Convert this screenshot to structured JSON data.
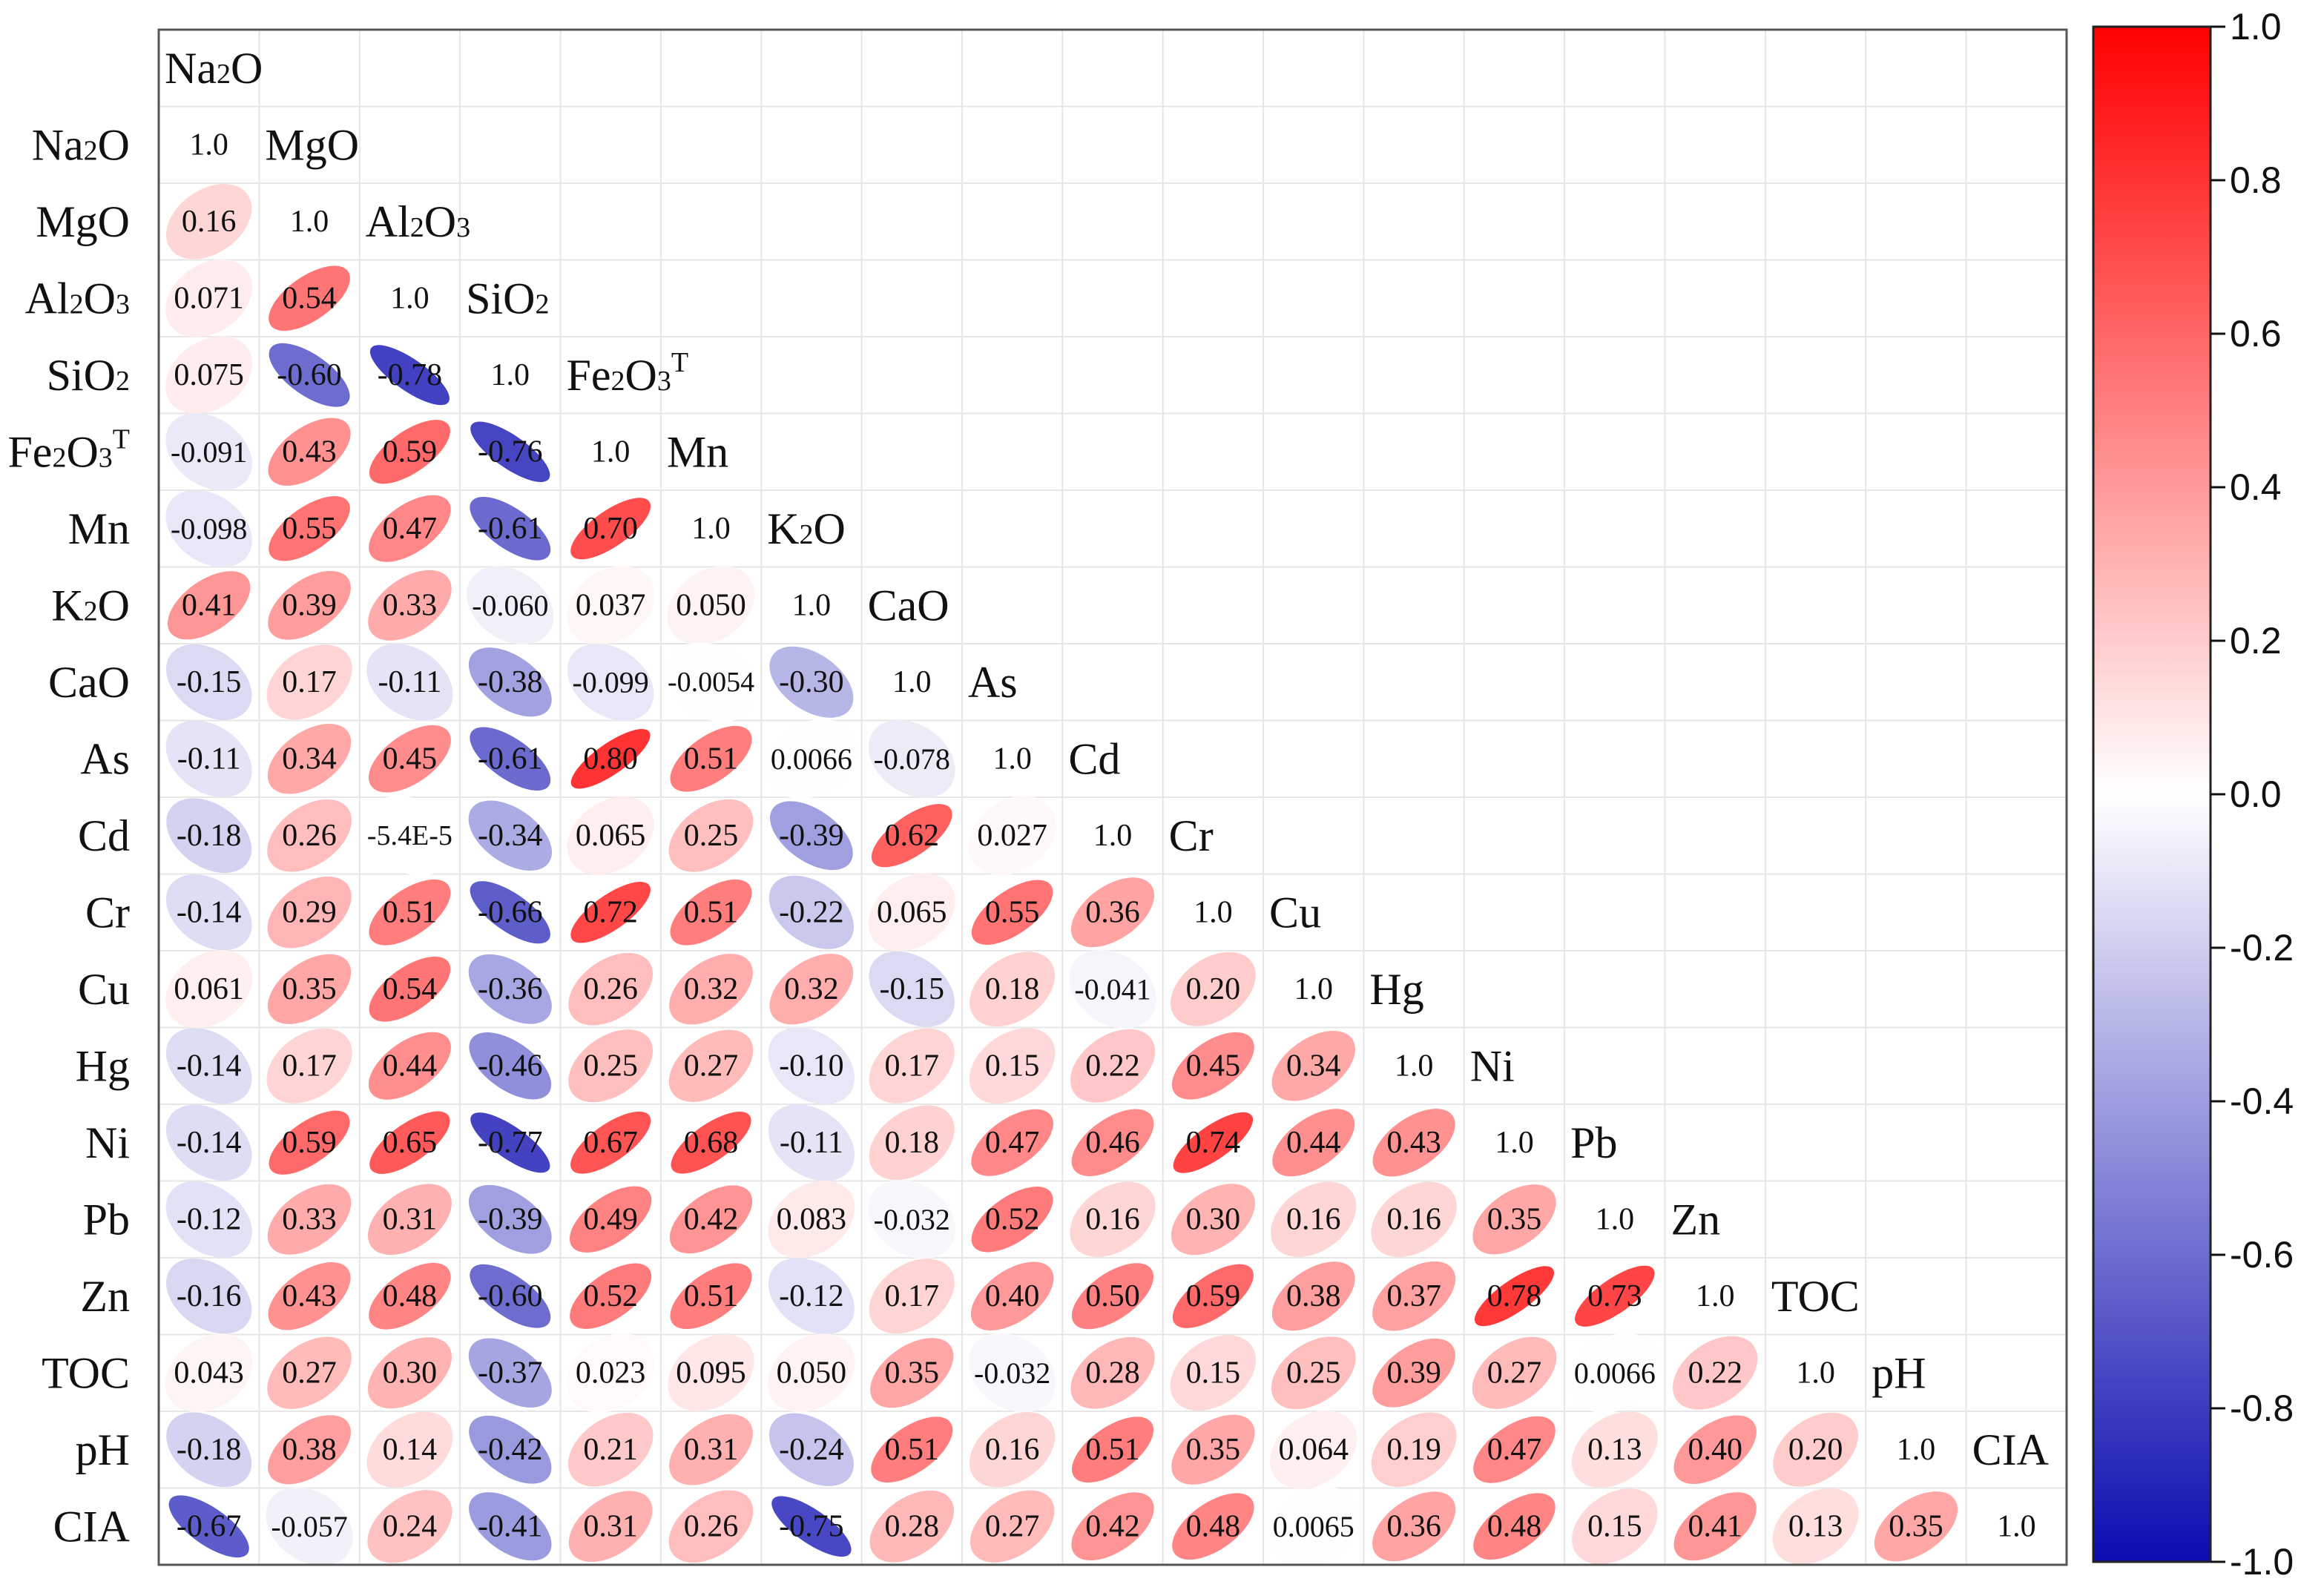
{
  "chart_data": {
    "type": "heatmap",
    "variables": [
      "Na2O",
      "MgO",
      "Al2O3",
      "SiO2",
      "Fe2O3T",
      "Mn",
      "K2O",
      "CaO",
      "As",
      "Cd",
      "Cr",
      "Cu",
      "Hg",
      "Ni",
      "Pb",
      "Zn",
      "TOC",
      "pH",
      "CIA"
    ],
    "label_parts": [
      [
        [
          "Na",
          ""
        ],
        [
          "2",
          "sub"
        ],
        [
          "O",
          ""
        ]
      ],
      [
        [
          "MgO",
          ""
        ]
      ],
      [
        [
          "Al",
          ""
        ],
        [
          "2",
          "sub"
        ],
        [
          "O",
          ""
        ],
        [
          "3",
          "sub"
        ]
      ],
      [
        [
          "SiO",
          ""
        ],
        [
          "2",
          "sub"
        ]
      ],
      [
        [
          "Fe",
          ""
        ],
        [
          "2",
          "sub"
        ],
        [
          "O",
          ""
        ],
        [
          "3",
          "sub"
        ],
        [
          "T",
          "sup"
        ]
      ],
      [
        [
          "Mn",
          ""
        ]
      ],
      [
        [
          "K",
          ""
        ],
        [
          "2",
          "sub"
        ],
        [
          "O",
          ""
        ]
      ],
      [
        [
          "CaO",
          ""
        ]
      ],
      [
        [
          "As",
          ""
        ]
      ],
      [
        [
          "Cd",
          ""
        ]
      ],
      [
        [
          "Cr",
          ""
        ]
      ],
      [
        [
          "Cu",
          ""
        ]
      ],
      [
        [
          "Hg",
          ""
        ]
      ],
      [
        [
          "Ni",
          ""
        ]
      ],
      [
        [
          "Pb",
          ""
        ]
      ],
      [
        [
          "Zn",
          ""
        ]
      ],
      [
        [
          "TOC",
          ""
        ]
      ],
      [
        [
          "pH",
          ""
        ]
      ],
      [
        [
          "CIA",
          ""
        ]
      ]
    ],
    "lower_triangle": [
      [
        "1.0"
      ],
      [
        "0.16",
        "1.0"
      ],
      [
        "0.071",
        "0.54",
        "1.0"
      ],
      [
        "0.075",
        "-0.60",
        "-0.78",
        "1.0"
      ],
      [
        "-0.091",
        "0.43",
        "0.59",
        "-0.76",
        "1.0"
      ],
      [
        "-0.098",
        "0.55",
        "0.47",
        "-0.61",
        "0.70",
        "1.0"
      ],
      [
        "0.41",
        "0.39",
        "0.33",
        "-0.060",
        "0.037",
        "0.050",
        "1.0"
      ],
      [
        "-0.15",
        "0.17",
        "-0.11",
        "-0.38",
        "-0.099",
        "-0.0054",
        "-0.30",
        "1.0"
      ],
      [
        "-0.11",
        "0.34",
        "0.45",
        "-0.61",
        "0.80",
        "0.51",
        "0.0066",
        "-0.078",
        "1.0"
      ],
      [
        "-0.18",
        "0.26",
        "-5.4E-5",
        "-0.34",
        "0.065",
        "0.25",
        "-0.39",
        "0.62",
        "0.027",
        "1.0"
      ],
      [
        "-0.14",
        "0.29",
        "0.51",
        "-0.66",
        "0.72",
        "0.51",
        "-0.22",
        "0.065",
        "0.55",
        "0.36",
        "1.0"
      ],
      [
        "0.061",
        "0.35",
        "0.54",
        "-0.36",
        "0.26",
        "0.32",
        "0.32",
        "-0.15",
        "0.18",
        "-0.041",
        "0.20",
        "1.0"
      ],
      [
        "-0.14",
        "0.17",
        "0.44",
        "-0.46",
        "0.25",
        "0.27",
        "-0.10",
        "0.17",
        "0.15",
        "0.22",
        "0.45",
        "0.34",
        "1.0"
      ],
      [
        "-0.14",
        "0.59",
        "0.65",
        "-0.77",
        "0.67",
        "0.68",
        "-0.11",
        "0.18",
        "0.47",
        "0.46",
        "0.74",
        "0.44",
        "0.43",
        "1.0"
      ],
      [
        "-0.12",
        "0.33",
        "0.31",
        "-0.39",
        "0.49",
        "0.42",
        "0.083",
        "-0.032",
        "0.52",
        "0.16",
        "0.30",
        "0.16",
        "0.16",
        "0.35",
        "1.0"
      ],
      [
        "-0.16",
        "0.43",
        "0.48",
        "-0.60",
        "0.52",
        "0.51",
        "-0.12",
        "0.17",
        "0.40",
        "0.50",
        "0.59",
        "0.38",
        "0.37",
        "0.78",
        "0.73",
        "1.0"
      ],
      [
        "0.043",
        "0.27",
        "0.30",
        "-0.37",
        "0.023",
        "0.095",
        "0.050",
        "0.35",
        "-0.032",
        "0.28",
        "0.15",
        "0.25",
        "0.39",
        "0.27",
        "0.0066",
        "0.22",
        "1.0"
      ],
      [
        "-0.18",
        "0.38",
        "0.14",
        "-0.42",
        "0.21",
        "0.31",
        "-0.24",
        "0.51",
        "0.16",
        "0.51",
        "0.35",
        "0.064",
        "0.19",
        "0.47",
        "0.13",
        "0.40",
        "0.20",
        "1.0"
      ],
      [
        "-0.67",
        "-0.057",
        "0.24",
        "-0.41",
        "0.31",
        "0.26",
        "-0.75",
        "0.28",
        "0.27",
        "0.42",
        "0.48",
        "0.0065",
        "0.36",
        "0.48",
        "0.15",
        "0.41",
        "0.13",
        "0.35",
        "1.0"
      ]
    ],
    "colorbar": {
      "range": [
        -1.0,
        1.0
      ],
      "ticks": [
        "1.0",
        "0.8",
        "0.6",
        "0.4",
        "0.2",
        "0.0",
        "-0.2",
        "-0.4",
        "-0.6",
        "-0.8",
        "-1.0"
      ],
      "colors": {
        "negative": "#0b0bb0",
        "zero": "#ffffff",
        "positive": "#ff0000"
      }
    },
    "grid": true
  }
}
